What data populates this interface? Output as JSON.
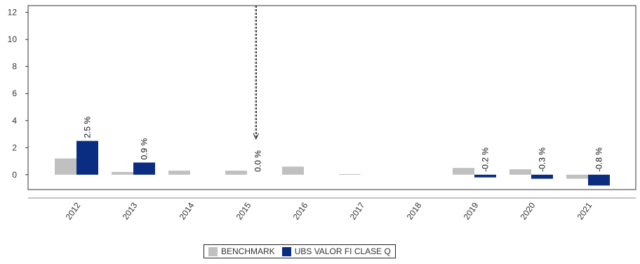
{
  "chart_data": {
    "type": "bar",
    "categories": [
      "2012",
      "2013",
      "2014",
      "2015",
      "2016",
      "2017",
      "2018",
      "2019",
      "2020",
      "2021"
    ],
    "series": [
      {
        "name": "BENCHMARK",
        "color": "#c0c0c0",
        "values": [
          1.2,
          0.2,
          0.3,
          0.3,
          0.6,
          0.05,
          null,
          0.5,
          0.4,
          -0.3
        ],
        "labels": [
          "",
          "",
          "",
          "",
          "",
          "",
          "",
          "",
          "",
          ""
        ]
      },
      {
        "name": "UBS VALOR FI CLASE Q",
        "color": "#0a2d82",
        "values": [
          2.5,
          0.9,
          null,
          0.0,
          null,
          null,
          null,
          -0.2,
          -0.3,
          -0.8
        ],
        "labels": [
          "2.5 %",
          "0.9 %",
          "",
          "0.0 %",
          "",
          "",
          "",
          "-0.2 %",
          "-0.3 %",
          "-0.8 %"
        ]
      }
    ],
    "ylim": [
      -1.1,
      12.5
    ],
    "yticks": [
      0,
      2,
      4,
      6,
      8,
      10,
      12
    ],
    "xlabel": "",
    "ylabel": "",
    "title": "",
    "grid": false,
    "legend_position": "bottom",
    "annotation": {
      "category": "2015",
      "description": "dashed vertical line with arrow pointing down to 0.0 % label"
    }
  }
}
